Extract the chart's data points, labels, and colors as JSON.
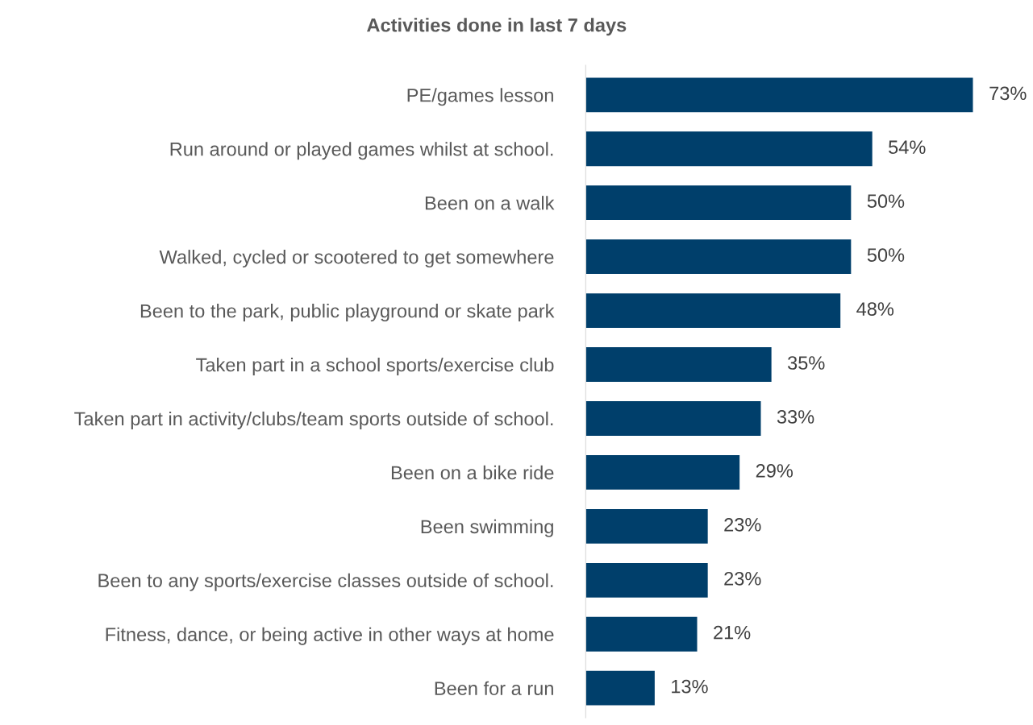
{
  "chart_data": {
    "type": "bar",
    "orientation": "horizontal",
    "title": "Activities done in last 7 days",
    "categories": [
      "PE/games lesson",
      "Run around or played games whilst at school.",
      "Been on a walk",
      "Walked, cycled or scootered to get somewhere",
      "Been to the park, public playground or skate park",
      "Taken part in a school sports/exercise club",
      "Taken part in activity/clubs/team sports outside of school.",
      "Been on a bike ride",
      "Been swimming",
      "Been to any sports/exercise classes outside of school.",
      "Fitness, dance, or being active in other ways at home",
      "Been for a run"
    ],
    "values": [
      73,
      54,
      50,
      50,
      48,
      35,
      33,
      29,
      23,
      23,
      21,
      13
    ],
    "value_labels": [
      "73%",
      "54%",
      "50%",
      "50%",
      "48%",
      "35%",
      "33%",
      "29%",
      "23%",
      "23%",
      "21%",
      "13%"
    ],
    "color": "#003f6b",
    "grid": false,
    "legend": false
  }
}
